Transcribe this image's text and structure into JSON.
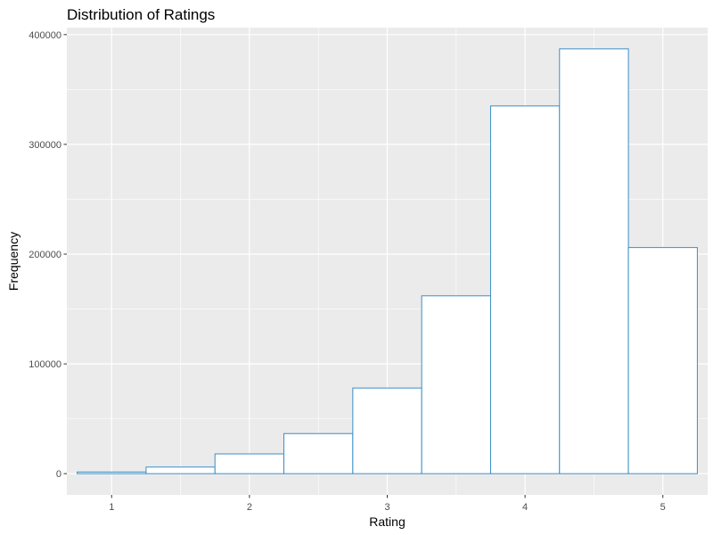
{
  "chart_data": {
    "type": "bar",
    "title": "Distribution of Ratings",
    "xlabel": "Rating",
    "ylabel": "Frequency",
    "bin_width": 0.5,
    "bins": [
      {
        "x_start": 0.75,
        "x_end": 1.25,
        "value": 1500
      },
      {
        "x_start": 1.25,
        "x_end": 1.75,
        "value": 6000
      },
      {
        "x_start": 1.75,
        "x_end": 2.25,
        "value": 18000
      },
      {
        "x_start": 2.25,
        "x_end": 2.75,
        "value": 36500
      },
      {
        "x_start": 2.75,
        "x_end": 3.25,
        "value": 78000
      },
      {
        "x_start": 3.25,
        "x_end": 3.75,
        "value": 162000
      },
      {
        "x_start": 3.75,
        "x_end": 4.25,
        "value": 335000
      },
      {
        "x_start": 4.25,
        "x_end": 4.75,
        "value": 387000
      },
      {
        "x_start": 4.75,
        "x_end": 5.25,
        "value": 206000
      }
    ],
    "xlim": [
      0.675,
      5.325
    ],
    "ylim": [
      -19350,
      406350
    ],
    "x_ticks": [
      {
        "value": 1,
        "label": "1"
      },
      {
        "value": 2,
        "label": "2"
      },
      {
        "value": 3,
        "label": "3"
      },
      {
        "value": 4,
        "label": "4"
      },
      {
        "value": 5,
        "label": "5"
      }
    ],
    "x_minor": [
      1.5,
      2.5,
      3.5,
      4.5
    ],
    "y_ticks": [
      {
        "value": 0,
        "label": "0"
      },
      {
        "value": 100000,
        "label": "100000"
      },
      {
        "value": 200000,
        "label": "200000"
      },
      {
        "value": 300000,
        "label": "300000"
      },
      {
        "value": 400000,
        "label": "400000"
      }
    ],
    "y_minor": [
      50000,
      150000,
      250000,
      350000
    ],
    "grid": true,
    "colors": {
      "panel_background": "#ebebeb",
      "grid": "#ffffff",
      "bar_fill": "#ffffff",
      "bar_outline": "#3a8fc8"
    }
  }
}
